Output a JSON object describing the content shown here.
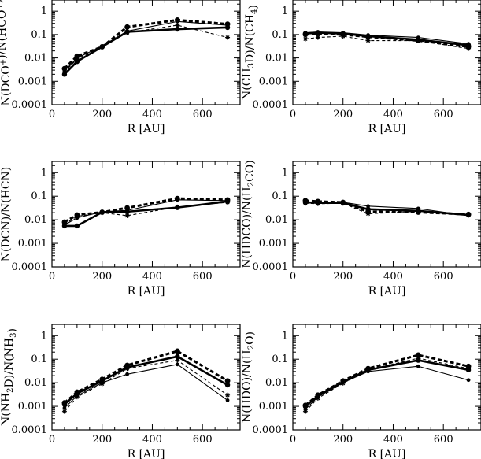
{
  "chart_data": [
    {
      "type": "line",
      "ylabel_parts": [
        [
          "N(DCO",
          ""
        ],
        [
          "+",
          "sup"
        ],
        [
          ")/N(HCO",
          ""
        ],
        [
          "+",
          "sup"
        ],
        [
          ")",
          ""
        ]
      ],
      "xlabel": "R [AU]",
      "xlim": [
        0,
        750
      ],
      "ylim": [
        0.0001,
        3
      ],
      "yscale": "log",
      "xticks": [
        0,
        200,
        400,
        600
      ],
      "yticks": [
        0.0001,
        0.001,
        0.01,
        0.1,
        1
      ],
      "ytick_labels": [
        "0.0001",
        "0.001",
        "0.01",
        "0.1",
        "1"
      ],
      "x": [
        50,
        100,
        200,
        300,
        500,
        700
      ],
      "series": [
        {
          "values": [
            0.002,
            0.007,
            0.03,
            0.13,
            0.17,
            0.2
          ],
          "style": "thick"
        },
        {
          "values": [
            0.0035,
            0.012,
            0.03,
            0.21,
            0.42,
            0.28
          ],
          "style": "thick-dashed"
        },
        {
          "values": [
            0.0028,
            0.01,
            0.032,
            0.14,
            0.36,
            0.25
          ],
          "style": "thin"
        },
        {
          "values": [
            0.0025,
            0.009,
            0.03,
            0.12,
            0.25,
            0.075
          ],
          "style": "thin-dashed"
        }
      ]
    },
    {
      "type": "line",
      "ylabel_parts": [
        [
          "N(CH",
          ""
        ],
        [
          "3",
          "sub"
        ],
        [
          "D)/N(CH",
          ""
        ],
        [
          "4",
          "sub"
        ],
        [
          ")",
          ""
        ]
      ],
      "xlabel": "R [AU]",
      "xlim": [
        0,
        750
      ],
      "ylim": [
        0.0001,
        3
      ],
      "yscale": "log",
      "xticks": [
        0,
        200,
        400,
        600
      ],
      "yticks": [
        0.0001,
        0.001,
        0.01,
        0.1,
        1
      ],
      "ytick_labels": [
        "0.0001",
        "0.001",
        "0.01",
        "0.1",
        "1"
      ],
      "x": [
        50,
        100,
        200,
        300,
        500,
        700
      ],
      "series": [
        {
          "values": [
            0.11,
            0.12,
            0.11,
            0.085,
            0.06,
            0.035
          ],
          "style": "thick"
        },
        {
          "values": [
            0.1,
            0.11,
            0.1,
            0.08,
            0.055,
            0.03
          ],
          "style": "thick-dashed"
        },
        {
          "values": [
            0.12,
            0.13,
            0.12,
            0.095,
            0.075,
            0.04
          ],
          "style": "thin"
        },
        {
          "values": [
            0.065,
            0.075,
            0.085,
            0.055,
            0.055,
            0.025
          ],
          "style": "thin-dashed"
        }
      ]
    },
    {
      "type": "line",
      "ylabel_parts": [
        [
          "N(DCN)/N(HCN)",
          ""
        ]
      ],
      "xlabel": "R [AU]",
      "xlim": [
        0,
        750
      ],
      "ylim": [
        0.0001,
        3
      ],
      "yscale": "log",
      "xticks": [
        0,
        200,
        400,
        600
      ],
      "yticks": [
        0.0001,
        0.001,
        0.01,
        0.1,
        1
      ],
      "ytick_labels": [
        "0.0001",
        "0.001",
        "0.01",
        "0.1",
        "1"
      ],
      "x": [
        50,
        100,
        200,
        300,
        500,
        700
      ],
      "series": [
        {
          "values": [
            0.0055,
            0.0055,
            0.021,
            0.022,
            0.033,
            0.06
          ],
          "style": "thick"
        },
        {
          "values": [
            0.008,
            0.016,
            0.021,
            0.032,
            0.08,
            0.07
          ],
          "style": "thick-dashed"
        },
        {
          "values": [
            0.006,
            0.012,
            0.022,
            0.025,
            0.07,
            0.065
          ],
          "style": "thin"
        },
        {
          "values": [
            0.0065,
            0.014,
            0.02,
            0.015,
            0.035,
            0.055
          ],
          "style": "thin-dashed"
        }
      ]
    },
    {
      "type": "line",
      "ylabel_parts": [
        [
          "N(HDCO)/N(H",
          ""
        ],
        [
          "2",
          "sub"
        ],
        [
          "CO)",
          ""
        ]
      ],
      "xlabel": "R [AU]",
      "xlim": [
        0,
        750
      ],
      "ylim": [
        0.0001,
        3
      ],
      "yscale": "log",
      "xticks": [
        0,
        200,
        400,
        600
      ],
      "yticks": [
        0.0001,
        0.001,
        0.01,
        0.1,
        1
      ],
      "ytick_labels": [
        "0.0001",
        "0.001",
        "0.01",
        "0.1",
        "1"
      ],
      "x": [
        50,
        100,
        200,
        300,
        500,
        700
      ],
      "series": [
        {
          "values": [
            0.055,
            0.052,
            0.052,
            0.028,
            0.024,
            0.016
          ],
          "style": "thick"
        },
        {
          "values": [
            0.065,
            0.06,
            0.055,
            0.022,
            0.021,
            0.017
          ],
          "style": "thick-dashed"
        },
        {
          "values": [
            0.055,
            0.05,
            0.055,
            0.038,
            0.03,
            0.015
          ],
          "style": "thin"
        },
        {
          "values": [
            0.05,
            0.048,
            0.05,
            0.018,
            0.023,
            0.016
          ],
          "style": "thin-dashed"
        }
      ]
    },
    {
      "type": "line",
      "ylabel_parts": [
        [
          "N(NH",
          ""
        ],
        [
          "2",
          "sub"
        ],
        [
          "D)/N(NH",
          ""
        ],
        [
          "3",
          "sub"
        ],
        [
          ")",
          ""
        ]
      ],
      "xlabel": "R [AU]",
      "xlim": [
        0,
        750
      ],
      "ylim": [
        0.0001,
        3
      ],
      "yscale": "log",
      "xticks": [
        0,
        200,
        400,
        600
      ],
      "yticks": [
        0.0001,
        0.001,
        0.01,
        0.1,
        1
      ],
      "ytick_labels": [
        "0.0001",
        "0.001",
        "0.01",
        "0.1",
        "1"
      ],
      "x": [
        50,
        100,
        200,
        300,
        500,
        700
      ],
      "series": [
        {
          "values": [
            0.0012,
            0.0035,
            0.012,
            0.045,
            0.13,
            0.008
          ],
          "style": "thick"
        },
        {
          "values": [
            0.0014,
            0.004,
            0.014,
            0.055,
            0.22,
            0.012
          ],
          "style": "thick-dashed"
        },
        {
          "values": [
            0.00085,
            0.0028,
            0.01,
            0.023,
            0.06,
            0.0018
          ],
          "style": "thin"
        },
        {
          "values": [
            0.0006,
            0.0025,
            0.009,
            0.04,
            0.09,
            0.003
          ],
          "style": "thin-dashed"
        }
      ]
    },
    {
      "type": "line",
      "ylabel_parts": [
        [
          "N(HDO)/N(H",
          ""
        ],
        [
          "2",
          "sub"
        ],
        [
          "O)",
          ""
        ]
      ],
      "xlabel": "R [AU]",
      "xlim": [
        0,
        750
      ],
      "ylim": [
        0.0001,
        3
      ],
      "yscale": "log",
      "xticks": [
        0,
        200,
        400,
        600
      ],
      "yticks": [
        0.0001,
        0.001,
        0.01,
        0.1,
        1
      ],
      "ytick_labels": [
        "0.0001",
        "0.001",
        "0.01",
        "0.1",
        "1"
      ],
      "x": [
        50,
        100,
        200,
        300,
        500,
        700
      ],
      "series": [
        {
          "values": [
            0.001,
            0.0028,
            0.011,
            0.035,
            0.09,
            0.035
          ],
          "style": "thick"
        },
        {
          "values": [
            0.0011,
            0.003,
            0.012,
            0.04,
            0.15,
            0.05
          ],
          "style": "thick-dashed"
        },
        {
          "values": [
            0.00075,
            0.0025,
            0.01,
            0.03,
            0.05,
            0.013
          ],
          "style": "thin"
        },
        {
          "values": [
            0.0006,
            0.0022,
            0.0095,
            0.035,
            0.11,
            0.04
          ],
          "style": "thin-dashed"
        }
      ]
    }
  ]
}
